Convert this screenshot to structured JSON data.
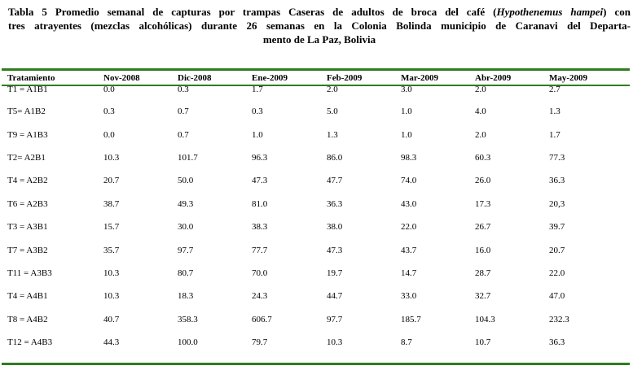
{
  "title": {
    "line1_prefix": "Tabla 5 Promedio semanal de capturas por trampas Caseras de adultos de broca del café (",
    "line1_species": "Hypothenemus hampei",
    "line1_suffix": ") con",
    "line2": "tres atrayentes (mezclas alcohólicas) durante 26 semanas en la Colonia Bolinda municipio de Caranavi del Departa-",
    "line3": "mento de La Paz, Bolivia"
  },
  "table": {
    "headers": [
      "Tratamiento",
      "Nov-2008",
      "Dic-2008",
      "Ene-2009",
      "Feb-2009",
      "Mar-2009",
      "Abr-2009",
      "May-2009"
    ],
    "rows": [
      [
        "T1 = A1B1",
        "0.0",
        "0.3",
        "1.7",
        "2.0",
        "3.0",
        "2.0",
        "2.7"
      ],
      [
        "T5= A1B2",
        "0.3",
        "0.7",
        "0.3",
        "5.0",
        "1.0",
        "4.0",
        "1.3"
      ],
      [
        "T9 = A1B3",
        "0.0",
        "0.7",
        "1.0",
        "1.3",
        "1.0",
        "2.0",
        "1.7"
      ],
      [
        "T2= A2B1",
        "10.3",
        "101.7",
        "96.3",
        "86.0",
        "98.3",
        "60.3",
        "77.3"
      ],
      [
        "T4 = A2B2",
        "20.7",
        "50.0",
        "47.3",
        "47.7",
        "74.0",
        "26.0",
        "36.3"
      ],
      [
        "T6 = A2B3",
        "38.7",
        "49.3",
        "81.0",
        "36.3",
        "43.0",
        "17.3",
        "20,3"
      ],
      [
        "T3 = A3B1",
        "15.7",
        "30.0",
        "38.3",
        "38.0",
        "22.0",
        "26.7",
        "39.7"
      ],
      [
        "T7 = A3B2",
        "35.7",
        "97.7",
        "77.7",
        "47.3",
        "43.7",
        "16.0",
        "20.7"
      ],
      [
        "T11 = A3B3",
        "10.3",
        "80.7",
        "70.0",
        "19.7",
        "14.7",
        "28.7",
        "22.0"
      ],
      [
        "T4 = A4B1",
        "10.3",
        "18.3",
        "24.3",
        "44.7",
        "33.0",
        "32.7",
        "47.0"
      ],
      [
        "T8 = A4B2",
        "40.7",
        "358.3",
        "606.7",
        "97.7",
        "185.7",
        "104.3",
        "232.3"
      ],
      [
        "T12 = A4B3",
        "44.3",
        "100.0",
        "79.7",
        "10.3",
        "8.7",
        "10.7",
        "36.3"
      ]
    ]
  },
  "colors": {
    "rule": "#2e7d1f"
  }
}
